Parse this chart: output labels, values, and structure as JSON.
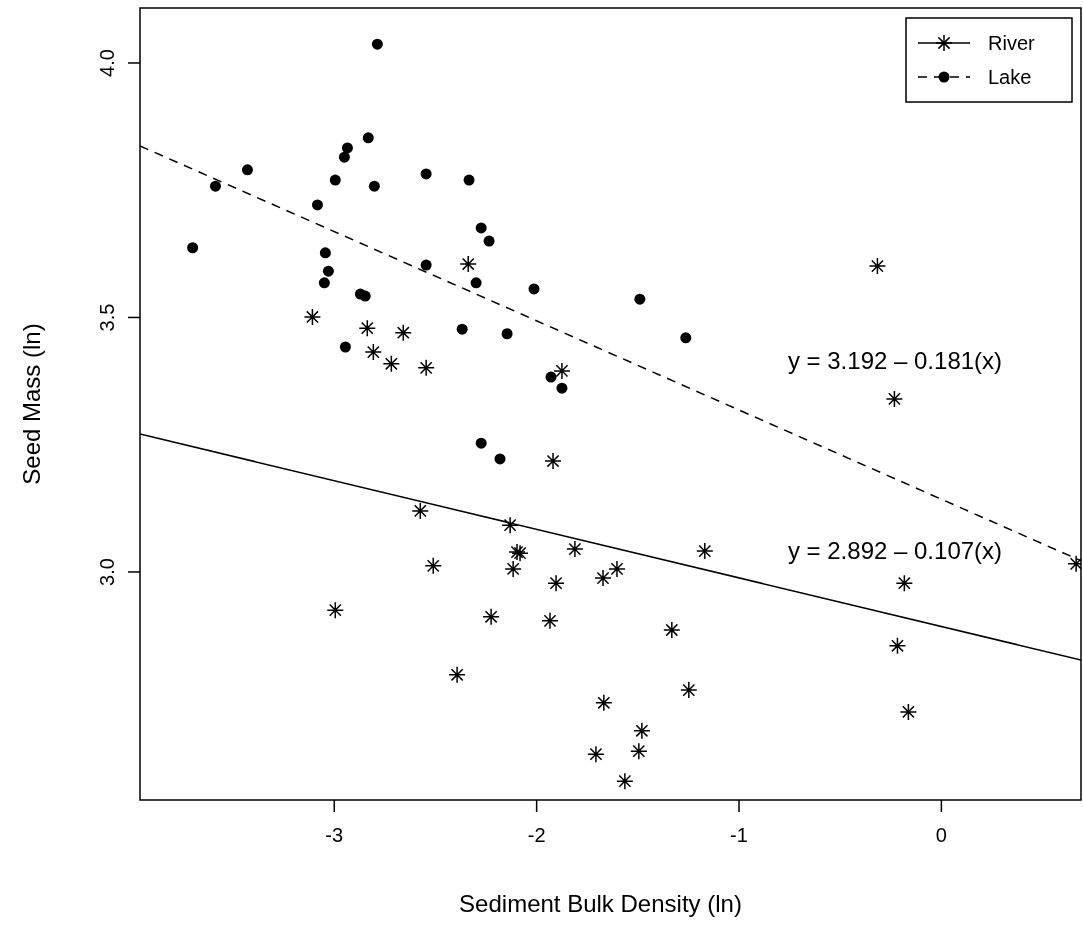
{
  "chart_data": {
    "type": "scatter",
    "xlabel": "Sediment Bulk Density (ln)",
    "ylabel": "Seed Mass (ln)",
    "xlim": [
      -3.96,
      0.69
    ],
    "ylim": [
      2.552,
      4.108
    ],
    "xticks": [
      -3,
      -2,
      -1,
      0
    ],
    "yticks": [
      {
        "value": 3,
        "label": "3.0"
      },
      {
        "value": 3.5,
        "label": "3.5"
      },
      {
        "value": 4,
        "label": "4.0"
      }
    ],
    "grid": false,
    "legend": "top right",
    "series": [
      {
        "name": "River",
        "marker": "cross",
        "line_style": "solid",
        "color": "#000000",
        "x": [
          -3.108,
          -2.837,
          -2.659,
          -2.807,
          -2.718,
          -2.546,
          -2.338,
          -1.875,
          -0.316,
          -0.232,
          -1.919,
          -2.575,
          -2.131,
          -2.511,
          -2.995,
          -2.097,
          -2.116,
          -2.082,
          -1.811,
          -1.904,
          -1.672,
          -1.603,
          -1.169,
          -2.225,
          -1.934,
          -2.393,
          -1.332,
          -0.183,
          0.666,
          -0.217,
          -0.163,
          -1.668,
          -1.48,
          -1.248,
          -1.707,
          -1.495,
          -1.564
        ],
        "values": [
          3.501,
          3.479,
          3.47,
          3.432,
          3.409,
          3.401,
          3.605,
          3.395,
          3.601,
          3.34,
          3.218,
          3.12,
          3.092,
          3.012,
          2.925,
          3.039,
          3.006,
          3.037,
          3.045,
          2.978,
          2.988,
          3.006,
          3.041,
          2.912,
          2.904,
          2.798,
          2.886,
          2.978,
          3.016,
          2.855,
          2.725,
          2.743,
          2.688,
          2.768,
          2.642,
          2.648,
          2.589
        ]
      },
      {
        "name": "Lake",
        "marker": "circle",
        "line_style": "dashed",
        "color": "#000000",
        "x": [
          -2.787,
          -2.832,
          -2.935,
          -2.95,
          -3.429,
          -3.587,
          -2.995,
          -3.083,
          -2.802,
          -2.546,
          -2.334,
          -2.274,
          -2.235,
          -3.7,
          -3.044,
          -3.029,
          -3.049,
          -2.871,
          -2.847,
          -2.546,
          -2.299,
          -2.013,
          -1.49,
          -2.368,
          -2.146,
          -2.945,
          -1.263,
          -1.929,
          -1.875,
          -2.274,
          -2.181
        ],
        "values": [
          4.037,
          3.853,
          3.833,
          3.815,
          3.79,
          3.758,
          3.77,
          3.721,
          3.758,
          3.782,
          3.77,
          3.676,
          3.65,
          3.637,
          3.627,
          3.591,
          3.568,
          3.546,
          3.542,
          3.603,
          3.568,
          3.556,
          3.536,
          3.477,
          3.468,
          3.442,
          3.46,
          3.383,
          3.361,
          3.253,
          3.222
        ]
      },
      {
        "type": "line",
        "line_style": "solid",
        "color": "#000000",
        "x": [
          -3.96,
          0.69
        ],
        "values": [
          3.271,
          2.827
        ]
      },
      {
        "type": "line",
        "line_style": "dashed",
        "color": "#000000",
        "x": [
          -3.96,
          0.69
        ],
        "values": [
          3.837,
          3.022
        ]
      }
    ],
    "annotations": [
      "y = 3.192 – 0.181(x)",
      "y = 2.892 – 0.107(x)"
    ]
  }
}
